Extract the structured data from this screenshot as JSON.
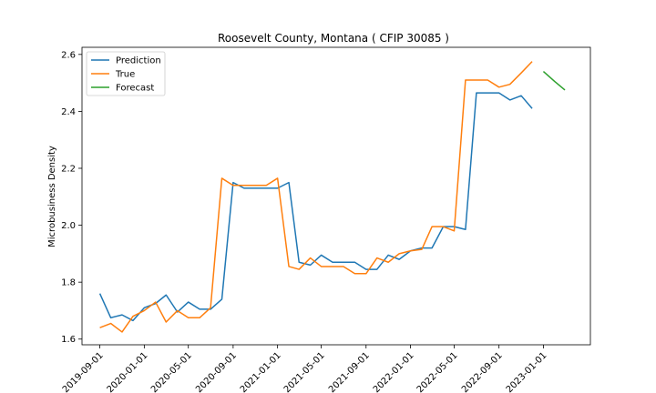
{
  "chart_data": {
    "type": "line",
    "title": "Roosevelt County, Montana ( CFIP 30085 )",
    "ylabel": "Microbusiness Density",
    "xlabel": "",
    "x_ticks": [
      "2019-09-01",
      "2020-01-01",
      "2020-05-01",
      "2020-09-01",
      "2021-01-01",
      "2021-05-01",
      "2021-09-01",
      "2022-01-01",
      "2022-05-01",
      "2022-09-01",
      "2023-01-01"
    ],
    "y_ticks": [
      "1.6",
      "1.8",
      "2.0",
      "2.2",
      "2.4",
      "2.6"
    ],
    "ylim": [
      1.58,
      2.625
    ],
    "xlim": [
      "2019-07-14",
      "2023-05-10"
    ],
    "legend_position": "top-left",
    "grid": false,
    "series": [
      {
        "name": "Prediction",
        "color": "#1f77b4",
        "points": [
          [
            "2019-09-01",
            1.76
          ],
          [
            "2019-10-01",
            1.675
          ],
          [
            "2019-11-01",
            1.685
          ],
          [
            "2019-12-01",
            1.665
          ],
          [
            "2020-01-01",
            1.71
          ],
          [
            "2020-02-01",
            1.725
          ],
          [
            "2020-03-01",
            1.755
          ],
          [
            "2020-04-01",
            1.695
          ],
          [
            "2020-05-01",
            1.73
          ],
          [
            "2020-06-01",
            1.705
          ],
          [
            "2020-07-01",
            1.705
          ],
          [
            "2020-08-01",
            1.74
          ],
          [
            "2020-09-01",
            2.15
          ],
          [
            "2020-10-01",
            2.13
          ],
          [
            "2020-11-01",
            2.13
          ],
          [
            "2020-12-01",
            2.13
          ],
          [
            "2021-01-01",
            2.13
          ],
          [
            "2021-02-01",
            2.15
          ],
          [
            "2021-03-01",
            1.87
          ],
          [
            "2021-04-01",
            1.86
          ],
          [
            "2021-05-01",
            1.895
          ],
          [
            "2021-06-01",
            1.87
          ],
          [
            "2021-07-01",
            1.87
          ],
          [
            "2021-08-01",
            1.87
          ],
          [
            "2021-09-01",
            1.845
          ],
          [
            "2021-10-01",
            1.845
          ],
          [
            "2021-11-01",
            1.895
          ],
          [
            "2021-12-01",
            1.88
          ],
          [
            "2022-01-01",
            1.91
          ],
          [
            "2022-02-01",
            1.92
          ],
          [
            "2022-03-01",
            1.92
          ],
          [
            "2022-04-01",
            1.995
          ],
          [
            "2022-05-01",
            1.995
          ],
          [
            "2022-06-01",
            1.985
          ],
          [
            "2022-07-01",
            2.465
          ],
          [
            "2022-08-01",
            2.465
          ],
          [
            "2022-09-01",
            2.465
          ],
          [
            "2022-10-01",
            2.44
          ],
          [
            "2022-11-01",
            2.455
          ],
          [
            "2022-12-01",
            2.41
          ]
        ]
      },
      {
        "name": "True",
        "color": "#ff7f0e",
        "points": [
          [
            "2019-09-01",
            1.64
          ],
          [
            "2019-10-01",
            1.655
          ],
          [
            "2019-11-01",
            1.625
          ],
          [
            "2019-12-01",
            1.68
          ],
          [
            "2020-01-01",
            1.7
          ],
          [
            "2020-02-01",
            1.73
          ],
          [
            "2020-03-01",
            1.66
          ],
          [
            "2020-04-01",
            1.7
          ],
          [
            "2020-05-01",
            1.675
          ],
          [
            "2020-06-01",
            1.675
          ],
          [
            "2020-07-01",
            1.71
          ],
          [
            "2020-08-01",
            2.165
          ],
          [
            "2020-09-01",
            2.14
          ],
          [
            "2020-10-01",
            2.14
          ],
          [
            "2020-11-01",
            2.14
          ],
          [
            "2020-12-01",
            2.14
          ],
          [
            "2021-01-01",
            2.165
          ],
          [
            "2021-02-01",
            1.855
          ],
          [
            "2021-03-01",
            1.845
          ],
          [
            "2021-04-01",
            1.885
          ],
          [
            "2021-05-01",
            1.855
          ],
          [
            "2021-06-01",
            1.855
          ],
          [
            "2021-07-01",
            1.855
          ],
          [
            "2021-08-01",
            1.83
          ],
          [
            "2021-09-01",
            1.83
          ],
          [
            "2021-10-01",
            1.885
          ],
          [
            "2021-11-01",
            1.87
          ],
          [
            "2021-12-01",
            1.9
          ],
          [
            "2022-01-01",
            1.91
          ],
          [
            "2022-02-01",
            1.915
          ],
          [
            "2022-03-01",
            1.995
          ],
          [
            "2022-04-01",
            1.995
          ],
          [
            "2022-05-01",
            1.98
          ],
          [
            "2022-06-01",
            2.51
          ],
          [
            "2022-07-01",
            2.51
          ],
          [
            "2022-08-01",
            2.51
          ],
          [
            "2022-09-01",
            2.485
          ],
          [
            "2022-10-01",
            2.495
          ],
          [
            "2022-11-01",
            2.535
          ],
          [
            "2022-12-01",
            2.575
          ]
        ]
      },
      {
        "name": "Forecast",
        "color": "#2ca02c",
        "points": [
          [
            "2023-01-01",
            2.54
          ],
          [
            "2023-02-01",
            2.505
          ],
          [
            "2023-03-01",
            2.475
          ]
        ]
      }
    ]
  }
}
